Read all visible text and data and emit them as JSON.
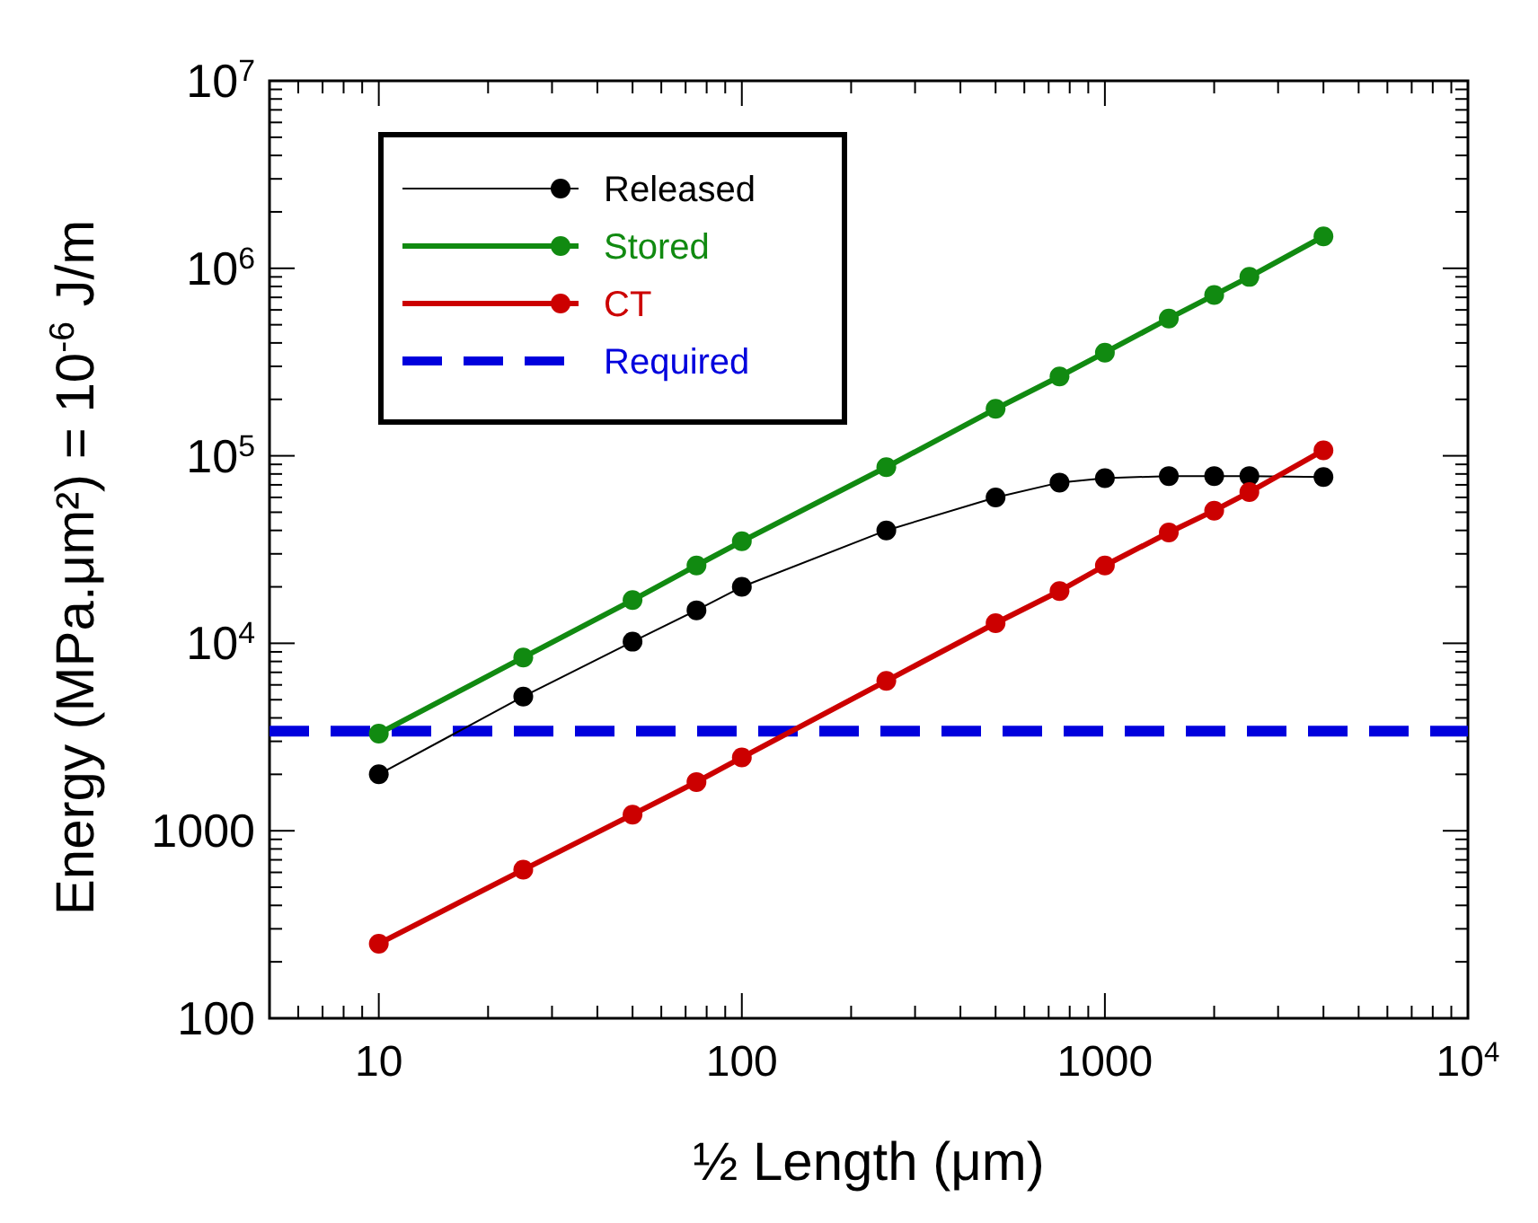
{
  "chart_data": {
    "type": "line",
    "xlabel": "½ Length (μm)",
    "ylabel": "Energy  (MPa.μm²)  = 10$^{-6}$ J/m",
    "log": "xy",
    "xlim": [
      5,
      10000
    ],
    "ylim": [
      100,
      10000000
    ],
    "xticks": [
      10,
      100,
      1000,
      {
        "value": 10000,
        "label": "10$^{4}$"
      }
    ],
    "yticks": [
      100,
      1000,
      {
        "value": 10000,
        "label": "10$^{4}$"
      },
      {
        "value": 100000,
        "label": "10$^{5}$"
      },
      {
        "value": 1000000,
        "label": "10$^{6}$"
      },
      {
        "value": 10000000,
        "label": "10$^{7}$"
      }
    ],
    "x": [
      10,
      25,
      50,
      75,
      100,
      250,
      500,
      750,
      1000,
      1500,
      2000,
      2500,
      4000
    ],
    "series": [
      {
        "name": "Released",
        "color": "#000000",
        "values": [
          2000,
          5200,
          10200,
          15000,
          20000,
          40000,
          60000,
          72000,
          76000,
          78000,
          78000,
          78000,
          77000
        ]
      },
      {
        "name": "Stored",
        "color": "#118a11",
        "values": [
          3300,
          8400,
          17000,
          26000,
          35000,
          87000,
          178000,
          265000,
          355000,
          540000,
          720000,
          900000,
          1480000
        ]
      },
      {
        "name": "CT",
        "color": "#cc0000",
        "values": [
          250,
          620,
          1220,
          1820,
          2460,
          6300,
          12800,
          19000,
          26000,
          39000,
          51000,
          64000,
          107000
        ]
      }
    ],
    "ref_lines": [
      {
        "axis": "y",
        "value": 3400,
        "label": "Required",
        "color": "#0000dd",
        "line_style": "dashed"
      }
    ],
    "marker": "circle",
    "grid": false,
    "legend": "top left"
  }
}
